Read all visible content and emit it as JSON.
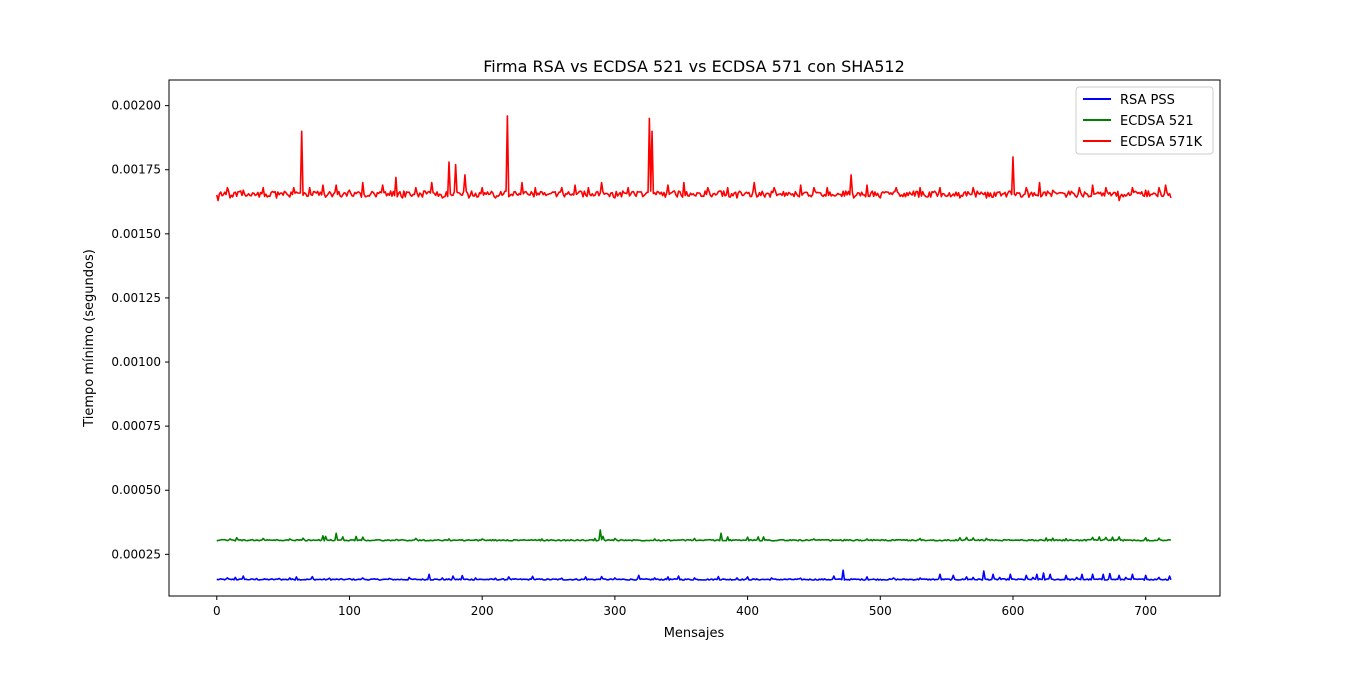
{
  "chart_data": {
    "type": "line",
    "title": "Firma RSA vs ECDSA 521 vs ECDSA 571 con SHA512",
    "xlabel": "Mensajes",
    "ylabel": "Tiempo mínimo (segundos)",
    "xlim": [
      -36,
      756
    ],
    "ylim": [
      8.75e-05,
      0.0021
    ],
    "xticks": [
      0,
      100,
      200,
      300,
      400,
      500,
      600,
      700
    ],
    "xtick_labels": [
      "0",
      "100",
      "200",
      "300",
      "400",
      "500",
      "600",
      "700"
    ],
    "yticks": [
      0.00025,
      0.0005,
      0.00075,
      0.001,
      0.00125,
      0.0015,
      0.00175,
      0.002
    ],
    "ytick_labels": [
      "0.00025",
      "0.00050",
      "0.00075",
      "0.00100",
      "0.00125",
      "0.00150",
      "0.00175",
      "0.00200"
    ],
    "grid": false,
    "legend_position": "top-right",
    "n_points": 720,
    "series": [
      {
        "name": "RSA PSS",
        "color": "#0000ff",
        "baseline": 0.000152,
        "spikes": [
          [
            8,
            0.000158
          ],
          [
            14,
            0.00016
          ],
          [
            20,
            0.000165
          ],
          [
            30,
            0.000156
          ],
          [
            47,
            0.000156
          ],
          [
            55,
            0.000158
          ],
          [
            60,
            0.000162
          ],
          [
            72,
            0.000163
          ],
          [
            85,
            0.000157
          ],
          [
            100,
            0.000155
          ],
          [
            110,
            0.000158
          ],
          [
            130,
            0.000156
          ],
          [
            145,
            0.00016
          ],
          [
            160,
            0.000172
          ],
          [
            170,
            0.000158
          ],
          [
            178,
            0.000165
          ],
          [
            185,
            0.000167
          ],
          [
            195,
            0.000158
          ],
          [
            210,
            0.000157
          ],
          [
            220,
            0.000162
          ],
          [
            238,
            0.000164
          ],
          [
            260,
            0.000157
          ],
          [
            278,
            0.000162
          ],
          [
            290,
            0.000163
          ],
          [
            300,
            0.000158
          ],
          [
            318,
            0.000168
          ],
          [
            330,
            0.000158
          ],
          [
            340,
            0.000162
          ],
          [
            348,
            0.000165
          ],
          [
            360,
            0.000158
          ],
          [
            378,
            0.000163
          ],
          [
            392,
            0.000158
          ],
          [
            400,
            0.000162
          ],
          [
            418,
            0.000158
          ],
          [
            440,
            0.000157
          ],
          [
            465,
            0.000165
          ],
          [
            472,
            0.000188
          ],
          [
            490,
            0.000162
          ],
          [
            510,
            0.000158
          ],
          [
            530,
            0.000158
          ],
          [
            545,
            0.000172
          ],
          [
            555,
            0.000168
          ],
          [
            565,
            0.000162
          ],
          [
            570,
            0.00016
          ],
          [
            578,
            0.000185
          ],
          [
            585,
            0.000172
          ],
          [
            590,
            0.00016
          ],
          [
            598,
            0.000172
          ],
          [
            610,
            0.000168
          ],
          [
            615,
            0.00016
          ],
          [
            618,
            0.000172
          ],
          [
            623,
            0.000177
          ],
          [
            628,
            0.000172
          ],
          [
            640,
            0.000168
          ],
          [
            648,
            0.00016
          ],
          [
            652,
            0.000172
          ],
          [
            660,
            0.000172
          ],
          [
            668,
            0.000172
          ],
          [
            673,
            0.000175
          ],
          [
            680,
            0.000168
          ],
          [
            685,
            0.00016
          ],
          [
            690,
            0.000172
          ],
          [
            700,
            0.000168
          ],
          [
            710,
            0.00016
          ],
          [
            718,
            0.000165
          ]
        ]
      },
      {
        "name": "ECDSA 521",
        "color": "#008000",
        "baseline": 0.000305,
        "spikes": [
          [
            10,
            0.00031
          ],
          [
            15,
            0.000315
          ],
          [
            35,
            0.000312
          ],
          [
            55,
            0.00031
          ],
          [
            65,
            0.000313
          ],
          [
            80,
            0.000322
          ],
          [
            82,
            0.00032
          ],
          [
            90,
            0.000332
          ],
          [
            95,
            0.000318
          ],
          [
            105,
            0.00032
          ],
          [
            110,
            0.000317
          ],
          [
            150,
            0.000312
          ],
          [
            175,
            0.00031
          ],
          [
            200,
            0.00031
          ],
          [
            245,
            0.00031
          ],
          [
            285,
            0.000312
          ],
          [
            289,
            0.000345
          ],
          [
            291,
            0.00032
          ],
          [
            300,
            0.000312
          ],
          [
            330,
            0.00031
          ],
          [
            360,
            0.000312
          ],
          [
            380,
            0.000332
          ],
          [
            385,
            0.000318
          ],
          [
            400,
            0.000317
          ],
          [
            408,
            0.000318
          ],
          [
            412,
            0.000318
          ],
          [
            450,
            0.00031
          ],
          [
            490,
            0.00031
          ],
          [
            530,
            0.000312
          ],
          [
            560,
            0.000315
          ],
          [
            565,
            0.000316
          ],
          [
            570,
            0.000314
          ],
          [
            580,
            0.000312
          ],
          [
            625,
            0.000314
          ],
          [
            630,
            0.000313
          ],
          [
            640,
            0.000311
          ],
          [
            660,
            0.000316
          ],
          [
            665,
            0.000318
          ],
          [
            670,
            0.000316
          ],
          [
            675,
            0.000317
          ],
          [
            680,
            0.000318
          ],
          [
            700,
            0.000315
          ],
          [
            710,
            0.000313
          ]
        ]
      },
      {
        "name": "ECDSA 571K",
        "color": "#ff0000",
        "baseline": 0.001655,
        "spikes": [
          [
            1,
            0.00163
          ],
          [
            8,
            0.00168
          ],
          [
            10,
            0.00164
          ],
          [
            20,
            0.00167
          ],
          [
            35,
            0.00168
          ],
          [
            45,
            0.00164
          ],
          [
            58,
            0.00168
          ],
          [
            64,
            0.0019
          ],
          [
            66,
            0.00166
          ],
          [
            70,
            0.00168
          ],
          [
            80,
            0.00169
          ],
          [
            90,
            0.00169
          ],
          [
            100,
            0.00167
          ],
          [
            110,
            0.0017
          ],
          [
            125,
            0.00169
          ],
          [
            135,
            0.00172
          ],
          [
            140,
            0.00164
          ],
          [
            150,
            0.00168
          ],
          [
            162,
            0.0017
          ],
          [
            170,
            0.00164
          ],
          [
            175,
            0.00178
          ],
          [
            177,
            0.00165
          ],
          [
            180,
            0.00177
          ],
          [
            182,
            0.00166
          ],
          [
            187,
            0.00173
          ],
          [
            190,
            0.00164
          ],
          [
            200,
            0.00168
          ],
          [
            210,
            0.00164
          ],
          [
            219,
            0.00196
          ],
          [
            221,
            0.00165
          ],
          [
            230,
            0.0017
          ],
          [
            240,
            0.00168
          ],
          [
            260,
            0.00168
          ],
          [
            270,
            0.00169
          ],
          [
            280,
            0.00168
          ],
          [
            290,
            0.0017
          ],
          [
            300,
            0.00164
          ],
          [
            310,
            0.00168
          ],
          [
            326,
            0.00195
          ],
          [
            328,
            0.0019
          ],
          [
            330,
            0.00166
          ],
          [
            340,
            0.00169
          ],
          [
            352,
            0.0017
          ],
          [
            360,
            0.00165
          ],
          [
            370,
            0.00168
          ],
          [
            385,
            0.00168
          ],
          [
            392,
            0.00164
          ],
          [
            405,
            0.0017
          ],
          [
            420,
            0.00168
          ],
          [
            440,
            0.00169
          ],
          [
            450,
            0.00168
          ],
          [
            460,
            0.00168
          ],
          [
            478,
            0.00173
          ],
          [
            480,
            0.00164
          ],
          [
            490,
            0.00169
          ],
          [
            500,
            0.00164
          ],
          [
            512,
            0.00168
          ],
          [
            520,
            0.00166
          ],
          [
            530,
            0.00168
          ],
          [
            545,
            0.00168
          ],
          [
            560,
            0.00164
          ],
          [
            570,
            0.00168
          ],
          [
            580,
            0.00164
          ],
          [
            600,
            0.0018
          ],
          [
            602,
            0.00165
          ],
          [
            610,
            0.00168
          ],
          [
            620,
            0.0017
          ],
          [
            630,
            0.00167
          ],
          [
            650,
            0.00168
          ],
          [
            660,
            0.00169
          ],
          [
            670,
            0.00168
          ],
          [
            680,
            0.00163
          ],
          [
            690,
            0.00168
          ],
          [
            700,
            0.00167
          ],
          [
            710,
            0.00168
          ],
          [
            715,
            0.00169
          ],
          [
            719,
            0.00164
          ]
        ]
      }
    ]
  }
}
